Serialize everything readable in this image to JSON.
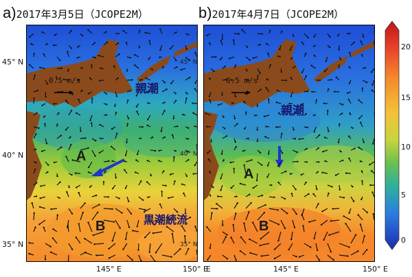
{
  "panels": [
    {
      "letter": "a)",
      "title": "2017年3月5日（JCOPE2M）",
      "ref_label": "0.5 m/s",
      "current_labels": {
        "oyashio": "親潮",
        "kuroshio": "黒潮続流"
      },
      "eddy_labels": [
        "A",
        "B"
      ],
      "inner_lat_labels": [
        "45° N",
        "40° N",
        "35° N"
      ]
    },
    {
      "letter": "b)",
      "title": "2017年4月7日（JCOPE2M）",
      "ref_label": "0.5 m/s",
      "current_labels": {
        "oyashio": "親潮"
      },
      "eddy_labels": [
        "A",
        "B"
      ],
      "inner_lat_labels": [
        "45° N",
        "40° N",
        "35° N"
      ]
    }
  ],
  "lat_ticks": [
    "45° N",
    "40° N",
    "35° N"
  ],
  "lon_ticks_a": [
    "145° E",
    "150° E"
  ],
  "lon_ticks_b": [
    "E",
    "145° E",
    "150° E"
  ],
  "colorbar": {
    "ticks": [
      "20",
      "15",
      "10",
      "5",
      "0"
    ],
    "min": 0,
    "max": 20
  },
  "colors": {
    "land": "#8b4a1c",
    "arrow_blue": "#2233cc"
  }
}
